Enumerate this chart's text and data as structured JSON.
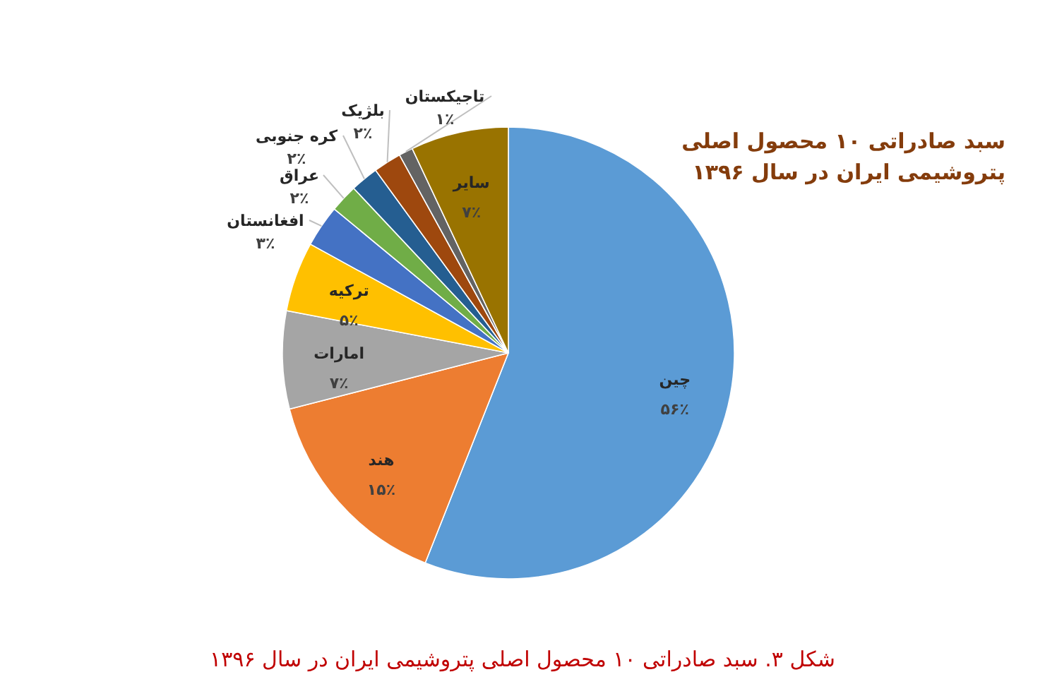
{
  "chart_data": {
    "type": "pie",
    "title": "سبد صادراتی ۱۰ محصول اصلی پتروشیمی ایران در سال ۱۳۹۶",
    "categories": [
      "چین",
      "هند",
      "امارات",
      "ترکیه",
      "افغانستان",
      "عراق",
      "کره جنوبی",
      "بلژیک",
      "تاجیکستان",
      "سایر"
    ],
    "values": [
      56,
      15,
      7,
      5,
      3,
      2,
      2,
      2,
      1,
      7
    ],
    "value_labels": [
      "۵۶٪",
      "۱۵٪",
      "۷٪",
      "۵٪",
      "۳٪",
      "۲٪",
      "۲٪",
      "۲٪",
      "۱٪",
      "۷٪"
    ],
    "colors": [
      "#5b9bd5",
      "#ed7d31",
      "#a5a5a5",
      "#ffc000",
      "#4472c4",
      "#70ad47",
      "#255e91",
      "#9e480e",
      "#636363",
      "#997300"
    ],
    "annotations": [
      "شکل ۳. سبد صادراتی ۱۰ محصول اصلی پتروشیمی ایران در سال ۱۳۹۶"
    ]
  }
}
